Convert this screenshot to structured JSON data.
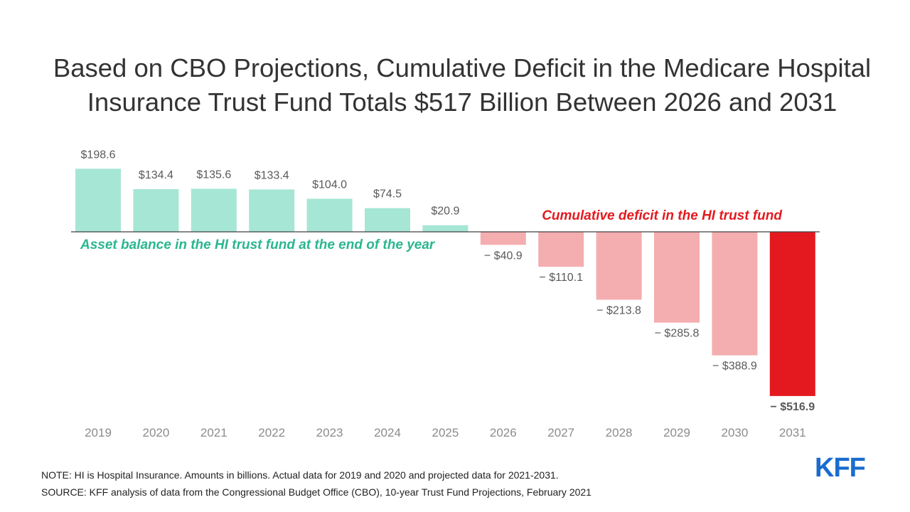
{
  "title_lines": [
    "Based on CBO Projections, Cumulative Deficit in the Medicare Hospital",
    "Insurance Trust Fund Totals $517 Billion Between 2026 and 2031"
  ],
  "chart_data": {
    "type": "bar",
    "title": "Based on CBO Projections, Cumulative Deficit in the Medicare Hospital Insurance Trust Fund Totals $517 Billion Between 2026 and 2031",
    "categories": [
      "2019",
      "2020",
      "2021",
      "2022",
      "2023",
      "2024",
      "2025",
      "2026",
      "2027",
      "2028",
      "2029",
      "2030",
      "2031"
    ],
    "values": [
      198.6,
      134.4,
      135.6,
      133.4,
      104.0,
      74.5,
      20.9,
      -40.9,
      -110.1,
      -213.8,
      -285.8,
      -388.9,
      -516.9
    ],
    "value_labels": [
      "$198.6",
      "$134.4",
      "$135.6",
      "$133.4",
      "$104.0",
      "$74.5",
      "$20.9",
      "− $40.9",
      "− $110.1",
      "− $213.8",
      "− $285.8",
      "− $388.9",
      "− $516.9"
    ],
    "xlabel": "",
    "ylabel": "",
    "ylim": [
      -516.9,
      198.6
    ],
    "grid": false,
    "legend": "none",
    "annotations": {
      "asset": "Asset balance in the HI trust fund at the end of the year",
      "deficit": "Cumulative deficit in the HI trust fund"
    },
    "colors": {
      "positive": "#a6e6d4",
      "negative": "#f4aeb0",
      "highlight": "#e4191f",
      "asset_text": "#2ab68f",
      "deficit_text": "#e4191f",
      "baseline": "#404040"
    },
    "highlight_category": "2031"
  },
  "footnotes": {
    "note": "NOTE: HI is Hospital Insurance.  Amounts in billions. Actual data for 2019 and 2020 and projected data for 2021-2031.",
    "source": "SOURCE: KFF analysis of data from the Congressional Budget Office (CBO), 10-year Trust Fund Projections, February 2021"
  },
  "logo": {
    "text": "KFF",
    "color": "#1a6ccf"
  }
}
